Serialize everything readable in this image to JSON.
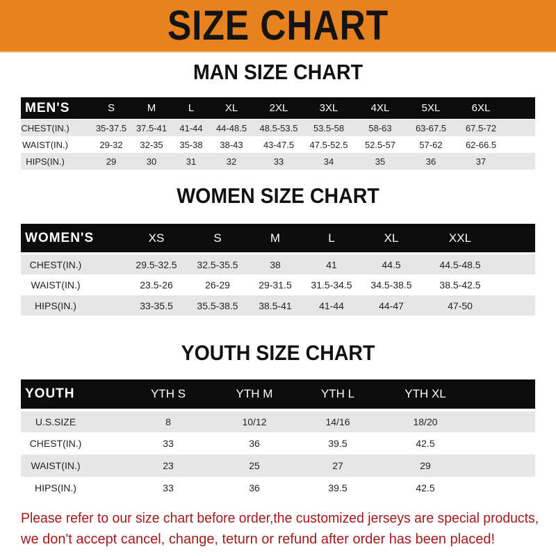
{
  "title": "SIZE CHART",
  "colors": {
    "banner": "#e8821e",
    "header_row": "#0c0c0c",
    "stripe": "#e6e6e6",
    "notice": "#a3191c"
  },
  "men": {
    "title": "MAN SIZE CHART",
    "header": [
      "MEN'S",
      "S",
      "M",
      "L",
      "XL",
      "2XL",
      "3XL",
      "4XL",
      "5XL",
      "6XL"
    ],
    "rows": [
      [
        "CHEST(IN.)",
        "35-37.5",
        "37.5-41",
        "41-44",
        "44-48.5",
        "48.5-53.5",
        "53.5-58",
        "58-63",
        "63-67.5",
        "67.5-72"
      ],
      [
        "WAIST(IN.)",
        "29-32",
        "32-35",
        "35-38",
        "38-43",
        "43-47.5",
        "47.5-52.5",
        "52.5-57",
        "57-62",
        "62-66.5"
      ],
      [
        "HIPS(IN.)",
        "29",
        "30",
        "31",
        "32",
        "33",
        "34",
        "35",
        "36",
        "37"
      ]
    ]
  },
  "women": {
    "title": "WOMEN SIZE CHART",
    "header": [
      "WOMEN'S",
      "XS",
      "S",
      "M",
      "L",
      "XL",
      "XXL"
    ],
    "rows": [
      [
        "CHEST(IN.)",
        "29.5-32.5",
        "32.5-35.5",
        "38",
        "41",
        "44.5",
        "44.5-48.5"
      ],
      [
        "WAIST(IN.)",
        "23.5-26",
        "26-29",
        "29-31.5",
        "31.5-34.5",
        "34.5-38.5",
        "38.5-42.5"
      ],
      [
        "HIPS(IN.)",
        "33-35.5",
        "35.5-38.5",
        "38.5-41",
        "41-44",
        "44-47",
        "47-50"
      ]
    ]
  },
  "youth": {
    "title": "YOUTH SIZE CHART",
    "header": [
      "YOUTH",
      "YTH S",
      "YTH M",
      "YTH L",
      "YTH XL"
    ],
    "rows": [
      [
        "U.S.SIZE",
        "8",
        "10/12",
        "14/16",
        "18/20"
      ],
      [
        "CHEST(IN.)",
        "33",
        "36",
        "39.5",
        "42.5"
      ],
      [
        "WAIST(IN.)",
        "23",
        "25",
        "27",
        "29"
      ],
      [
        "HIPS(IN.)",
        "33",
        "36",
        "39.5",
        "42.5"
      ]
    ]
  },
  "notice": {
    "line1": "Please refer to our size chart before order,the customized jerseys are special products,",
    "line2": "we don't accept cancel, change, teturn or refund after order has been placed!"
  }
}
